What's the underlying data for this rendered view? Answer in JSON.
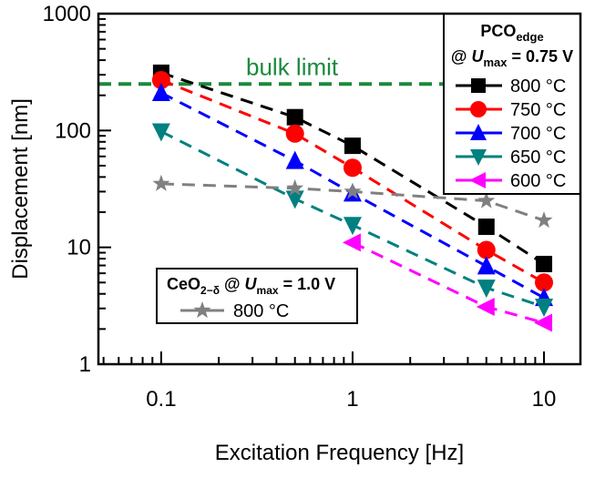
{
  "chart_data": {
    "type": "line",
    "xlabel": "Excitation Frequency [Hz]",
    "ylabel": "Displacement [nm]",
    "xscale": "log",
    "yscale": "log",
    "xlim": [
      0.047,
      15.5
    ],
    "ylim": [
      1,
      1000
    ],
    "xticks": [
      "0.1",
      "1",
      "10"
    ],
    "yticks": [
      "1",
      "10",
      "100",
      "1000"
    ],
    "grid": false,
    "bulk_limit": {
      "label": "bulk limit",
      "value": 250,
      "color": "#1a8a3c"
    },
    "legend1": {
      "title": "PCO",
      "title_sub": "edge",
      "line2_prefix": "@ ",
      "line2_var": "U",
      "line2_sub": "max",
      "line2_suffix": " = 0.75 V",
      "placement": "top-right"
    },
    "legend2": {
      "title": "CeO",
      "title_sub": "2−δ",
      "mid": " @ ",
      "var": "U",
      "var_sub": "max",
      "suffix": " = 1.0 V",
      "placement": "bottom-left"
    },
    "series": [
      {
        "name": "800 °C",
        "group": "PCO",
        "color": "#000000",
        "marker": "square",
        "x": [
          0.1,
          0.5,
          1,
          5,
          10
        ],
        "y": [
          312,
          130,
          74,
          15,
          7.2
        ]
      },
      {
        "name": "750 °C",
        "group": "PCO",
        "color": "#ff0000",
        "marker": "circle",
        "x": [
          0.1,
          0.5,
          1,
          5,
          10
        ],
        "y": [
          270,
          94,
          48,
          9.5,
          5.0
        ]
      },
      {
        "name": "700 °C",
        "group": "PCO",
        "color": "#0000ff",
        "marker": "triangle-up",
        "x": [
          0.1,
          0.5,
          1,
          5,
          10
        ],
        "y": [
          210,
          55,
          29,
          6.9,
          3.7
        ]
      },
      {
        "name": "650 °C",
        "group": "PCO",
        "color": "#008080",
        "marker": "triangle-down",
        "x": [
          0.1,
          0.5,
          1,
          5,
          10
        ],
        "y": [
          98,
          26,
          15.5,
          4.5,
          3.1
        ]
      },
      {
        "name": "600 °C",
        "group": "PCO",
        "color": "#ff00ff",
        "marker": "triangle-left",
        "x": [
          1,
          5,
          10
        ],
        "y": [
          11,
          3.1,
          2.26
        ]
      },
      {
        "name": "800 °C",
        "group": "CeO2",
        "color": "#808080",
        "marker": "star",
        "x": [
          0.1,
          0.5,
          1,
          5,
          10
        ],
        "y": [
          35,
          32,
          30,
          25,
          17
        ]
      }
    ]
  }
}
